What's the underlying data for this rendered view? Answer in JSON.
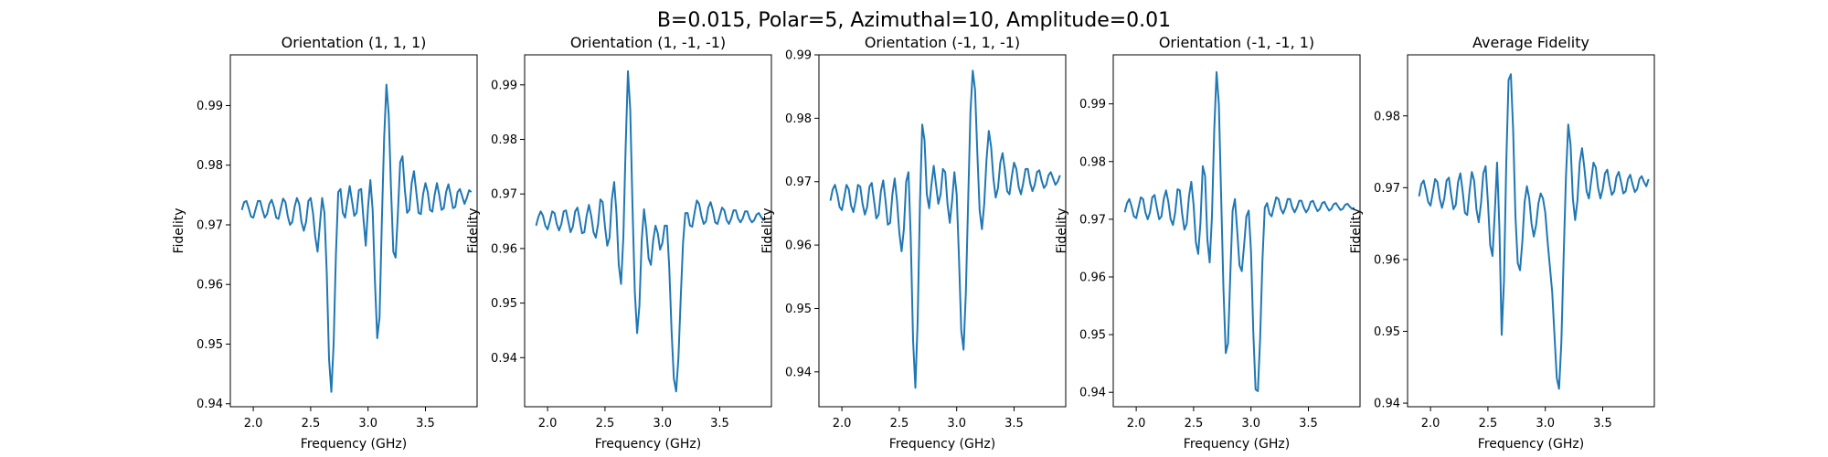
{
  "figure": {
    "suptitle": "B=0.015, Polar=5, Azimuthal=10, Amplitude=0.01"
  },
  "chart_data": [
    {
      "type": "line",
      "title": "Orientation (1, 1, 1)",
      "xlabel": "Frequency (GHz)",
      "ylabel": "Fidelity",
      "xlim": [
        1.8,
        3.95
      ],
      "ylim": [
        0.9395,
        0.9985
      ],
      "xticks": [
        2.0,
        2.5,
        3.0,
        3.5
      ],
      "yticks": [
        0.94,
        0.95,
        0.96,
        0.97,
        0.98,
        0.99
      ],
      "line_color": "#1f77b4",
      "grid": false,
      "x": [
        1.9,
        1.92,
        1.94,
        1.96,
        1.98,
        2.0,
        2.02,
        2.04,
        2.06,
        2.08,
        2.1,
        2.12,
        2.14,
        2.16,
        2.18,
        2.2,
        2.22,
        2.24,
        2.26,
        2.28,
        2.3,
        2.32,
        2.34,
        2.36,
        2.38,
        2.4,
        2.42,
        2.44,
        2.46,
        2.48,
        2.5,
        2.52,
        2.54,
        2.56,
        2.58,
        2.6,
        2.62,
        2.64,
        2.66,
        2.68,
        2.7,
        2.72,
        2.74,
        2.76,
        2.78,
        2.8,
        2.82,
        2.84,
        2.86,
        2.88,
        2.9,
        2.92,
        2.94,
        2.96,
        2.98,
        3.0,
        3.02,
        3.04,
        3.06,
        3.08,
        3.1,
        3.12,
        3.14,
        3.16,
        3.18,
        3.2,
        3.22,
        3.24,
        3.26,
        3.28,
        3.3,
        3.32,
        3.34,
        3.36,
        3.38,
        3.4,
        3.42,
        3.44,
        3.46,
        3.48,
        3.5,
        3.52,
        3.54,
        3.56,
        3.58,
        3.6,
        3.62,
        3.64,
        3.66,
        3.68,
        3.7,
        3.72,
        3.74,
        3.76,
        3.78,
        3.8,
        3.82,
        3.84,
        3.86,
        3.88,
        3.9
      ],
      "y": [
        0.9725,
        0.9738,
        0.974,
        0.9728,
        0.9714,
        0.9712,
        0.9726,
        0.974,
        0.974,
        0.9725,
        0.9712,
        0.9718,
        0.9735,
        0.9742,
        0.973,
        0.9712,
        0.971,
        0.9728,
        0.9744,
        0.9738,
        0.9715,
        0.97,
        0.9705,
        0.973,
        0.9745,
        0.9735,
        0.9705,
        0.969,
        0.9705,
        0.974,
        0.9745,
        0.972,
        0.968,
        0.9655,
        0.97,
        0.9745,
        0.972,
        0.962,
        0.9475,
        0.942,
        0.95,
        0.965,
        0.9755,
        0.976,
        0.972,
        0.9712,
        0.974,
        0.9765,
        0.974,
        0.9715,
        0.972,
        0.9758,
        0.976,
        0.971,
        0.9665,
        0.973,
        0.9775,
        0.9725,
        0.9605,
        0.951,
        0.9545,
        0.9705,
        0.9845,
        0.9935,
        0.9885,
        0.976,
        0.9655,
        0.9645,
        0.972,
        0.9805,
        0.9815,
        0.976,
        0.972,
        0.9725,
        0.977,
        0.979,
        0.9755,
        0.972,
        0.9718,
        0.9752,
        0.977,
        0.9755,
        0.9725,
        0.9722,
        0.975,
        0.977,
        0.975,
        0.9725,
        0.9728,
        0.9755,
        0.9768,
        0.975,
        0.9728,
        0.973,
        0.9755,
        0.976,
        0.9748,
        0.9735,
        0.9745,
        0.9758,
        0.9755
      ]
    },
    {
      "type": "line",
      "title": "Orientation (1, -1, -1)",
      "xlabel": "Frequency (GHz)",
      "ylabel": "Fidelity",
      "xlim": [
        1.8,
        3.95
      ],
      "ylim": [
        0.931,
        0.9955
      ],
      "xticks": [
        2.0,
        2.5,
        3.0,
        3.5
      ],
      "yticks": [
        0.94,
        0.95,
        0.96,
        0.97,
        0.98,
        0.99
      ],
      "line_color": "#1f77b4",
      "grid": false,
      "x": [
        1.9,
        1.92,
        1.94,
        1.96,
        1.98,
        2.0,
        2.02,
        2.04,
        2.06,
        2.08,
        2.1,
        2.12,
        2.14,
        2.16,
        2.18,
        2.2,
        2.22,
        2.24,
        2.26,
        2.28,
        2.3,
        2.32,
        2.34,
        2.36,
        2.38,
        2.4,
        2.42,
        2.44,
        2.46,
        2.48,
        2.5,
        2.52,
        2.54,
        2.56,
        2.58,
        2.6,
        2.62,
        2.64,
        2.66,
        2.68,
        2.7,
        2.72,
        2.74,
        2.76,
        2.78,
        2.8,
        2.82,
        2.84,
        2.86,
        2.88,
        2.9,
        2.92,
        2.94,
        2.96,
        2.98,
        3.0,
        3.02,
        3.04,
        3.06,
        3.08,
        3.1,
        3.12,
        3.14,
        3.16,
        3.18,
        3.2,
        3.22,
        3.24,
        3.26,
        3.28,
        3.3,
        3.32,
        3.34,
        3.36,
        3.38,
        3.4,
        3.42,
        3.44,
        3.46,
        3.48,
        3.5,
        3.52,
        3.54,
        3.56,
        3.58,
        3.6,
        3.62,
        3.64,
        3.66,
        3.68,
        3.7,
        3.72,
        3.74,
        3.76,
        3.78,
        3.8,
        3.82,
        3.84,
        3.86,
        3.88,
        3.9
      ],
      "y": [
        0.9642,
        0.9658,
        0.9668,
        0.966,
        0.9642,
        0.9635,
        0.965,
        0.9668,
        0.9665,
        0.9645,
        0.9633,
        0.9645,
        0.9668,
        0.967,
        0.965,
        0.963,
        0.964,
        0.9668,
        0.9675,
        0.9652,
        0.9628,
        0.963,
        0.966,
        0.968,
        0.966,
        0.963,
        0.962,
        0.9645,
        0.969,
        0.9685,
        0.964,
        0.9605,
        0.962,
        0.969,
        0.9722,
        0.9665,
        0.957,
        0.9535,
        0.962,
        0.9785,
        0.9925,
        0.9855,
        0.9675,
        0.952,
        0.9445,
        0.9495,
        0.9615,
        0.9672,
        0.9635,
        0.9582,
        0.957,
        0.9615,
        0.9642,
        0.9628,
        0.9598,
        0.961,
        0.9642,
        0.9642,
        0.9565,
        0.945,
        0.9362,
        0.9338,
        0.94,
        0.951,
        0.961,
        0.9665,
        0.9665,
        0.9642,
        0.964,
        0.9665,
        0.9688,
        0.9682,
        0.966,
        0.9645,
        0.965,
        0.9675,
        0.9685,
        0.967,
        0.9648,
        0.9645,
        0.966,
        0.9675,
        0.967,
        0.9652,
        0.9645,
        0.9655,
        0.967,
        0.967,
        0.9655,
        0.9648,
        0.9655,
        0.9668,
        0.9668,
        0.9655,
        0.9648,
        0.9652,
        0.9662,
        0.9665,
        0.9658,
        0.9652,
        0.9655
      ]
    },
    {
      "type": "line",
      "title": "Orientation (-1, 1, -1)",
      "xlabel": "Frequency (GHz)",
      "ylabel": "Fidelity",
      "xlim": [
        1.8,
        3.95
      ],
      "ylim": [
        0.9345,
        0.99
      ],
      "xticks": [
        2.0,
        2.5,
        3.0,
        3.5
      ],
      "yticks": [
        0.94,
        0.95,
        0.96,
        0.97,
        0.98,
        0.99
      ],
      "line_color": "#1f77b4",
      "grid": false,
      "x": [
        1.9,
        1.92,
        1.94,
        1.96,
        1.98,
        2.0,
        2.02,
        2.04,
        2.06,
        2.08,
        2.1,
        2.12,
        2.14,
        2.16,
        2.18,
        2.2,
        2.22,
        2.24,
        2.26,
        2.28,
        2.3,
        2.32,
        2.34,
        2.36,
        2.38,
        2.4,
        2.42,
        2.44,
        2.46,
        2.48,
        2.5,
        2.52,
        2.54,
        2.56,
        2.58,
        2.6,
        2.62,
        2.64,
        2.66,
        2.68,
        2.7,
        2.72,
        2.74,
        2.76,
        2.78,
        2.8,
        2.82,
        2.84,
        2.86,
        2.88,
        2.9,
        2.92,
        2.94,
        2.96,
        2.98,
        3.0,
        3.02,
        3.04,
        3.06,
        3.08,
        3.1,
        3.12,
        3.14,
        3.16,
        3.18,
        3.2,
        3.22,
        3.24,
        3.26,
        3.28,
        3.3,
        3.32,
        3.34,
        3.36,
        3.38,
        3.4,
        3.42,
        3.44,
        3.46,
        3.48,
        3.5,
        3.52,
        3.54,
        3.56,
        3.58,
        3.6,
        3.62,
        3.64,
        3.66,
        3.68,
        3.7,
        3.72,
        3.74,
        3.76,
        3.78,
        3.8,
        3.82,
        3.84,
        3.86,
        3.88,
        3.9
      ],
      "y": [
        0.967,
        0.9688,
        0.9695,
        0.968,
        0.966,
        0.9655,
        0.9675,
        0.9695,
        0.9688,
        0.9662,
        0.9652,
        0.967,
        0.9695,
        0.9692,
        0.9665,
        0.9648,
        0.966,
        0.9692,
        0.9698,
        0.967,
        0.9642,
        0.9648,
        0.9685,
        0.9702,
        0.967,
        0.9632,
        0.9635,
        0.968,
        0.9705,
        0.967,
        0.962,
        0.959,
        0.9625,
        0.97,
        0.9715,
        0.961,
        0.945,
        0.9375,
        0.948,
        0.9665,
        0.979,
        0.9765,
        0.968,
        0.9658,
        0.9695,
        0.9725,
        0.9695,
        0.9665,
        0.968,
        0.972,
        0.9715,
        0.9665,
        0.9635,
        0.967,
        0.9715,
        0.968,
        0.958,
        0.9465,
        0.9435,
        0.9525,
        0.967,
        0.981,
        0.9875,
        0.9845,
        0.9745,
        0.9655,
        0.9625,
        0.9665,
        0.9735,
        0.978,
        0.9755,
        0.9705,
        0.9675,
        0.969,
        0.973,
        0.9745,
        0.9718,
        0.9685,
        0.968,
        0.9708,
        0.973,
        0.972,
        0.9692,
        0.968,
        0.9698,
        0.972,
        0.972,
        0.9698,
        0.9685,
        0.9695,
        0.9715,
        0.9718,
        0.9702,
        0.969,
        0.9695,
        0.971,
        0.9715,
        0.9705,
        0.9695,
        0.97,
        0.971
      ]
    },
    {
      "type": "line",
      "title": "Orientation (-1, -1, 1)",
      "xlabel": "Frequency (GHz)",
      "ylabel": "Fidelity",
      "xlim": [
        1.8,
        3.95
      ],
      "ylim": [
        0.9375,
        0.9985
      ],
      "xticks": [
        2.0,
        2.5,
        3.0,
        3.5
      ],
      "yticks": [
        0.94,
        0.95,
        0.96,
        0.97,
        0.98,
        0.99
      ],
      "line_color": "#1f77b4",
      "grid": false,
      "x": [
        1.9,
        1.92,
        1.94,
        1.96,
        1.98,
        2.0,
        2.02,
        2.04,
        2.06,
        2.08,
        2.1,
        2.12,
        2.14,
        2.16,
        2.18,
        2.2,
        2.22,
        2.24,
        2.26,
        2.28,
        2.3,
        2.32,
        2.34,
        2.36,
        2.38,
        2.4,
        2.42,
        2.44,
        2.46,
        2.48,
        2.5,
        2.52,
        2.54,
        2.56,
        2.58,
        2.6,
        2.62,
        2.64,
        2.66,
        2.68,
        2.7,
        2.72,
        2.74,
        2.76,
        2.78,
        2.8,
        2.82,
        2.84,
        2.86,
        2.88,
        2.9,
        2.92,
        2.94,
        2.96,
        2.98,
        3.0,
        3.02,
        3.04,
        3.06,
        3.08,
        3.1,
        3.12,
        3.14,
        3.16,
        3.18,
        3.2,
        3.22,
        3.24,
        3.26,
        3.28,
        3.3,
        3.32,
        3.34,
        3.36,
        3.38,
        3.4,
        3.42,
        3.44,
        3.46,
        3.48,
        3.5,
        3.52,
        3.54,
        3.56,
        3.58,
        3.6,
        3.62,
        3.64,
        3.66,
        3.68,
        3.7,
        3.72,
        3.74,
        3.76,
        3.78,
        3.8,
        3.82,
        3.84,
        3.86,
        3.88,
        3.9
      ],
      "y": [
        0.9712,
        0.9728,
        0.9735,
        0.9722,
        0.9705,
        0.9702,
        0.972,
        0.9738,
        0.9735,
        0.9712,
        0.97,
        0.9712,
        0.9738,
        0.9742,
        0.972,
        0.97,
        0.9705,
        0.9735,
        0.975,
        0.973,
        0.97,
        0.969,
        0.9712,
        0.9752,
        0.975,
        0.971,
        0.9682,
        0.9692,
        0.974,
        0.9765,
        0.9725,
        0.966,
        0.964,
        0.9695,
        0.9792,
        0.9775,
        0.9665,
        0.9625,
        0.9705,
        0.9855,
        0.9955,
        0.99,
        0.974,
        0.958,
        0.9468,
        0.9485,
        0.9605,
        0.9715,
        0.9735,
        0.968,
        0.962,
        0.961,
        0.9655,
        0.9705,
        0.9715,
        0.9645,
        0.9505,
        0.9405,
        0.9402,
        0.9495,
        0.963,
        0.972,
        0.9728,
        0.971,
        0.9705,
        0.9722,
        0.9738,
        0.9735,
        0.9718,
        0.971,
        0.972,
        0.9735,
        0.9735,
        0.972,
        0.9712,
        0.972,
        0.9732,
        0.9732,
        0.972,
        0.9712,
        0.9718,
        0.973,
        0.9732,
        0.9722,
        0.9714,
        0.9718,
        0.9728,
        0.973,
        0.9722,
        0.9715,
        0.9718,
        0.9726,
        0.9728,
        0.9722,
        0.9716,
        0.9718,
        0.9725,
        0.9727,
        0.9722,
        0.9718,
        0.972
      ]
    },
    {
      "type": "line",
      "title": "Average Fidelity",
      "xlabel": "Frequency (GHz)",
      "ylabel": "Fidelity",
      "xlim": [
        1.8,
        3.95
      ],
      "ylim": [
        0.9395,
        0.9885
      ],
      "xticks": [
        2.0,
        2.5,
        3.0,
        3.5
      ],
      "yticks": [
        0.94,
        0.95,
        0.96,
        0.97,
        0.98
      ],
      "line_color": "#1f77b4",
      "grid": false,
      "x": [
        1.9,
        1.92,
        1.94,
        1.96,
        1.98,
        2.0,
        2.02,
        2.04,
        2.06,
        2.08,
        2.1,
        2.12,
        2.14,
        2.16,
        2.18,
        2.2,
        2.22,
        2.24,
        2.26,
        2.28,
        2.3,
        2.32,
        2.34,
        2.36,
        2.38,
        2.4,
        2.42,
        2.44,
        2.46,
        2.48,
        2.5,
        2.52,
        2.54,
        2.56,
        2.58,
        2.6,
        2.62,
        2.64,
        2.66,
        2.68,
        2.7,
        2.72,
        2.74,
        2.76,
        2.78,
        2.8,
        2.82,
        2.84,
        2.86,
        2.88,
        2.9,
        2.92,
        2.94,
        2.96,
        2.98,
        3.0,
        3.02,
        3.04,
        3.06,
        3.08,
        3.1,
        3.12,
        3.14,
        3.16,
        3.18,
        3.2,
        3.22,
        3.24,
        3.26,
        3.28,
        3.3,
        3.32,
        3.34,
        3.36,
        3.38,
        3.4,
        3.42,
        3.44,
        3.46,
        3.48,
        3.5,
        3.52,
        3.54,
        3.56,
        3.58,
        3.6,
        3.62,
        3.64,
        3.66,
        3.68,
        3.7,
        3.72,
        3.74,
        3.76,
        3.78,
        3.8,
        3.82,
        3.84,
        3.86,
        3.88,
        3.9
      ],
      "y": [
        0.9688,
        0.9705,
        0.971,
        0.9696,
        0.968,
        0.9675,
        0.9693,
        0.9712,
        0.9708,
        0.9685,
        0.9672,
        0.9685,
        0.971,
        0.9714,
        0.969,
        0.967,
        0.9676,
        0.9708,
        0.972,
        0.9695,
        0.9665,
        0.9662,
        0.9695,
        0.9722,
        0.971,
        0.967,
        0.9652,
        0.9678,
        0.972,
        0.973,
        0.968,
        0.962,
        0.9605,
        0.9665,
        0.9735,
        0.9645,
        0.9495,
        0.957,
        0.9735,
        0.985,
        0.9858,
        0.978,
        0.966,
        0.9595,
        0.9585,
        0.9625,
        0.968,
        0.9702,
        0.9685,
        0.965,
        0.9632,
        0.9648,
        0.9678,
        0.9692,
        0.9685,
        0.9665,
        0.9625,
        0.959,
        0.9555,
        0.9495,
        0.9435,
        0.942,
        0.9485,
        0.9605,
        0.9715,
        0.9788,
        0.976,
        0.9685,
        0.9655,
        0.9682,
        0.9735,
        0.9755,
        0.9728,
        0.9695,
        0.9685,
        0.971,
        0.9735,
        0.9728,
        0.97,
        0.9685,
        0.9698,
        0.972,
        0.9725,
        0.9705,
        0.969,
        0.9695,
        0.9715,
        0.9722,
        0.9708,
        0.9692,
        0.9695,
        0.9712,
        0.9718,
        0.9705,
        0.9694,
        0.9698,
        0.9712,
        0.9716,
        0.9708,
        0.9702,
        0.9712
      ]
    }
  ]
}
